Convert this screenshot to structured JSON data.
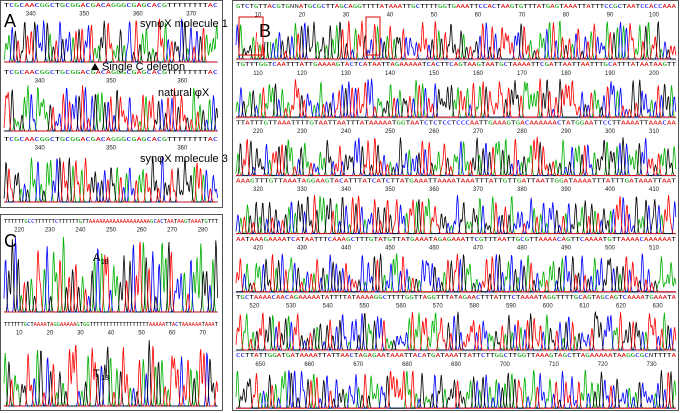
{
  "panels": {
    "A": {
      "label": "A",
      "annotation": "Single C deletion",
      "tracks": [
        {
          "sequence": "TCGCAACGGCTGCGGACGACAGGGCGAGCACGTTTTTTTTAC",
          "positions": [
            "340",
            "350",
            "360",
            "370"
          ],
          "caption": "synφX molecule 1"
        },
        {
          "sequence": "TCGCAACGGCTGCGGACGACAGGGCGAGCACGTTTTTTTTAC",
          "positions": [
            "340",
            "350",
            "360"
          ],
          "caption": "natural φX"
        },
        {
          "sequence": "TCGCAACGGCTGCGGACGACAGGGCGAGCACGTTTTTTTTAC",
          "positions": [
            "340",
            "350",
            "360"
          ],
          "caption": "synφX molecule 3"
        }
      ]
    },
    "B": {
      "label": "B",
      "rows": [
        {
          "sequence": "GTCTGTTACGTGNNATGCGCTTAGCAGGTTTTATAAATTGCTTTTGGTGAAATTCCACTAAGTGTTTATGAGTAAATTATTTCCGCTAATCCACCAAA",
          "positions": [
            "10",
            "20",
            "30",
            "40",
            "50",
            "60",
            "70",
            "80",
            "90",
            "100"
          ]
        },
        {
          "sequence": "TGTTTGGTCAATTTATTGAAAAGTACTCATAATTAGAAAAATCACTTCAGTAAGTAATGCTAAAATTCGATTAATTAATTTGCATTTATAATAAGTT",
          "positions": [
            "110",
            "120",
            "130",
            "140",
            "150",
            "160",
            "170",
            "180",
            "190",
            "200"
          ]
        },
        {
          "sequence": "TTATTTGTTAAATTTTGTAATTAATTTATAAAAATGGTAATCTCTCCTCCCAATTGAAAGTGACAAAAAACTATGGAATTCCTTAAAATTAAACAA",
          "positions": [
            "220",
            "230",
            "240",
            "250",
            "260",
            "270",
            "280",
            "290",
            "300",
            "310"
          ]
        },
        {
          "sequence": "AAAGTTTGTTAAATAGGAAGTACATTTATCATCTTATGAAATTAAAATAAATTTATTGTTGATTAATTGGATAAAATTTATTTGATAAATTAAT",
          "positions": [
            "320",
            "330",
            "340",
            "350",
            "360",
            "370",
            "380",
            "390",
            "400",
            "410"
          ]
        },
        {
          "sequence": "AATAAAGAAAATCATAATTTCAAAGCTTTGTATGTTATGAAATAGAGAAATTCGTTTAATTGCGTTAAAACAGTTCAAAATGTTAAAACAAAAAAT",
          "positions": [
            "420",
            "430",
            "440",
            "450",
            "460",
            "470",
            "480",
            "490",
            "500",
            "510"
          ]
        },
        {
          "sequence": "TGCTAAAACAACAGAAAAATATTTTATAAAAGGCTTTTGGTTAGGTTTATAGAACTTTATTTCTAAAATAGGTTTTGCAGTAGCAGTCAAAATGAAATA",
          "positions": [
            "520",
            "530",
            "540",
            "550",
            "560",
            "570",
            "580",
            "590",
            "600",
            "610",
            "620",
            "630"
          ]
        },
        {
          "sequence": "CCTTATTGGATGATAAAATTATTAACTAGAGAATAAATTACATGATAAATTATTCTTGGCTTGGTTAAAGTAGCTTAGAAAAATAAGGCGCNTTTTA",
          "positions": [
            "650",
            "660",
            "670",
            "680",
            "690",
            "700",
            "710",
            "720",
            "730"
          ]
        }
      ]
    },
    "C": {
      "label": "C",
      "tracks": [
        {
          "sequence": "TTTTTTGCCTTTTTTCTTTTTTGTTAAAAAAAAAAAAAAAAAAGCACTAATAAGTAAATGTTT",
          "positions": [
            "220",
            "230",
            "240",
            "250",
            "260",
            "270",
            "280"
          ],
          "caption": "A",
          "subscript": "18"
        },
        {
          "sequence": "TTTTTTGCTAAAATAGGAAAAAGTGGTTTTTTTTTTTTTTTTTTAAAAATTACTAAAAAATAAAT",
          "positions": [
            "10",
            "20",
            "30",
            "40",
            "50",
            "60",
            "70"
          ],
          "caption": "T",
          "subscript": "18"
        }
      ]
    }
  }
}
